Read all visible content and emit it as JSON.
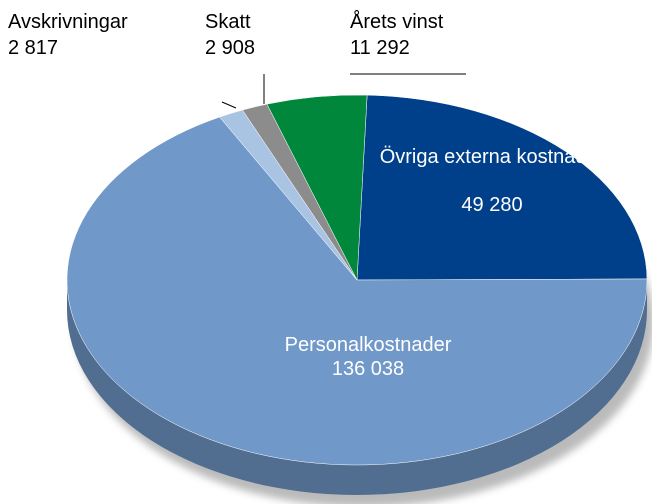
{
  "chart_data": {
    "type": "pie",
    "categories": [
      "Övriga externa kostnader",
      "Personalkostnader",
      "Avskrivningar",
      "Skatt",
      "Årets vinst"
    ],
    "values": [
      49280,
      136038,
      2817,
      2908,
      11292
    ],
    "value_labels": [
      "49 280",
      "136 038",
      "2 817",
      "2 908",
      "11 292"
    ],
    "colors": [
      "#003f8a",
      "#7098c8",
      "#a9c3e3",
      "#8c8c8c",
      "#00873c"
    ]
  }
}
